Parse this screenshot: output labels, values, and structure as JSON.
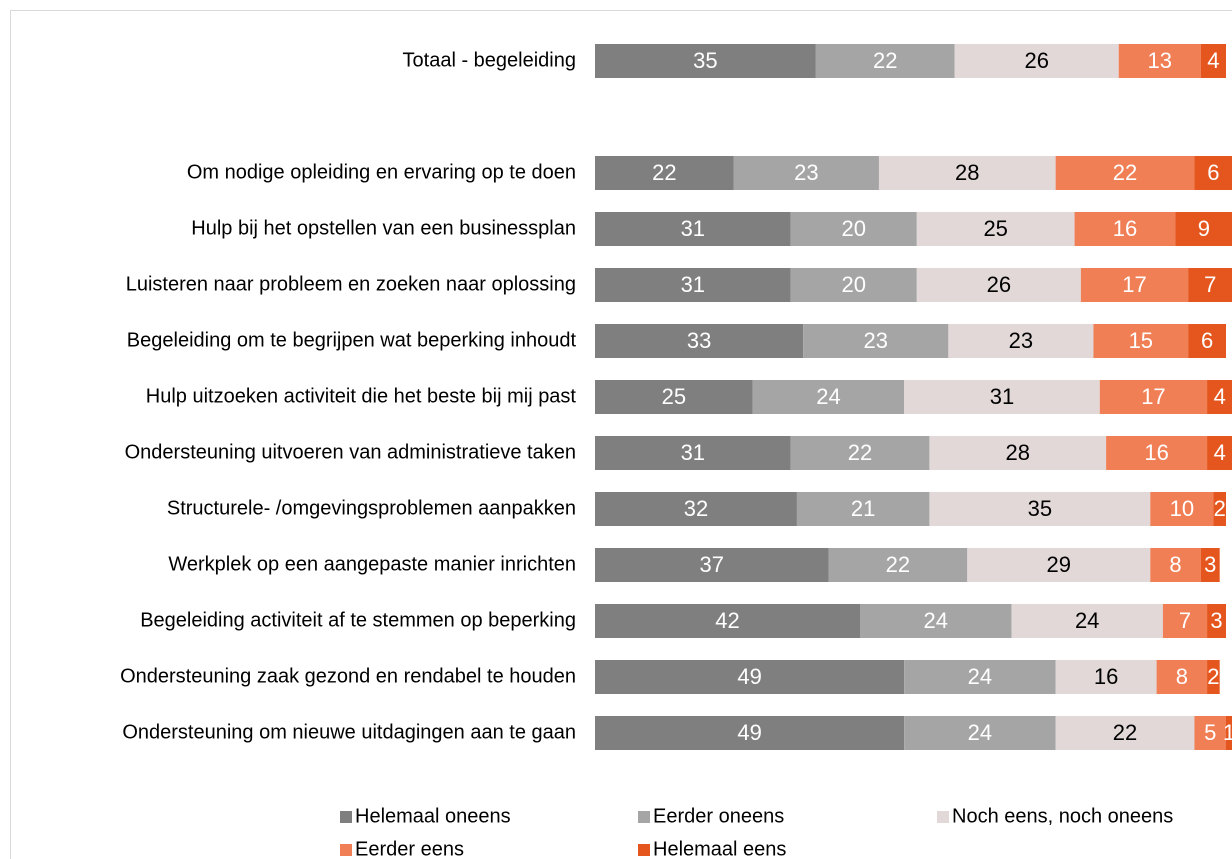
{
  "chart_data": {
    "type": "stacked-bar-horizontal",
    "categories": [
      "Totaal - begeleiding",
      null,
      "Om nodige opleiding en ervaring op te doen",
      "Hulp bij het opstellen van een businessplan",
      "Luisteren naar probleem en zoeken naar oplossing",
      "Begeleiding om te begrijpen wat beperking inhoudt",
      "Hulp uitzoeken activiteit die het beste bij mij past",
      "Ondersteuning uitvoeren van administratieve taken",
      "Structurele- /omgevingsproblemen aanpakken",
      "Werkplek op een aangepaste manier inrichten",
      "Begeleiding activiteit af te stemmen op beperking",
      "Ondersteuning zaak gezond en rendabel te houden",
      "Ondersteuning om nieuwe uitdagingen aan te gaan"
    ],
    "series": [
      {
        "name": "Helemaal oneens",
        "color": "#7f7f7f",
        "label_color": "#ffffff",
        "values": [
          35,
          null,
          22,
          31,
          31,
          33,
          25,
          31,
          32,
          37,
          42,
          49,
          49
        ]
      },
      {
        "name": "Eerder oneens",
        "color": "#a5a5a5",
        "label_color": "#ffffff",
        "values": [
          22,
          null,
          23,
          20,
          20,
          23,
          24,
          22,
          21,
          22,
          24,
          24,
          24
        ]
      },
      {
        "name": "Noch eens, noch oneens",
        "color": "#e2d8d8",
        "label_color": "#000000",
        "values": [
          26,
          null,
          28,
          25,
          26,
          23,
          31,
          28,
          35,
          29,
          24,
          16,
          22
        ]
      },
      {
        "name": "Eerder eens",
        "color": "#f07f55",
        "label_color": "#ffffff",
        "values": [
          13,
          null,
          22,
          16,
          17,
          15,
          17,
          16,
          10,
          8,
          7,
          8,
          5
        ]
      },
      {
        "name": "Helemaal eens",
        "color": "#e5561e",
        "label_color": "#ffffff",
        "values": [
          4,
          null,
          6,
          9,
          7,
          6,
          4,
          4,
          2,
          3,
          3,
          2,
          1
        ]
      }
    ],
    "xlim": [
      0,
      100
    ],
    "legend": "bottom"
  }
}
